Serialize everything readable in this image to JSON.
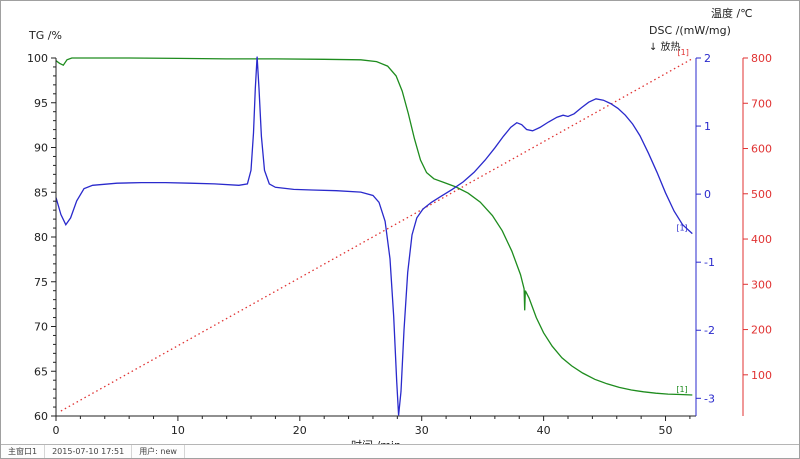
{
  "window": {
    "status_left": "主窗口1",
    "status_datetime": "2015-07-10 17:51",
    "status_user": "用户: new"
  },
  "chart_data": {
    "type": "line",
    "title": "",
    "grid": false,
    "x_axis": {
      "label": "时间 /min",
      "min": 0,
      "max": 52.5,
      "ticks": [
        0,
        10,
        20,
        30,
        40,
        50
      ],
      "minor_step": 2
    },
    "y_axes": [
      {
        "id": "tg",
        "label": "TG /%",
        "sublabel": "",
        "min": 60,
        "max": 100,
        "ticks": [
          100,
          95,
          90,
          85,
          80,
          75,
          70,
          65,
          60
        ],
        "side": "left",
        "color": "#222222"
      },
      {
        "id": "dsc",
        "label": "DSC /(mW/mg)",
        "sublabel": "↓ 放热",
        "min": -3.26,
        "max": 2,
        "ticks": [
          2,
          1,
          0,
          -1,
          -2,
          -3
        ],
        "side": "right",
        "color": "#2a2acc"
      },
      {
        "id": "temp",
        "label": "温度 /℃",
        "sublabel": "",
        "min": 9,
        "max": 800,
        "ticks": [
          800,
          700,
          600,
          500,
          400,
          300,
          200,
          100
        ],
        "side": "far-right",
        "color": "#e03232"
      }
    ],
    "series": [
      {
        "name": "TG",
        "axis": "tg",
        "color": "#1e8c1e",
        "style": "solid",
        "end_label": "[1]",
        "points": [
          [
            0,
            99.7
          ],
          [
            0.3,
            99.4
          ],
          [
            0.6,
            99.2
          ],
          [
            0.9,
            99.8
          ],
          [
            1.3,
            100.0
          ],
          [
            3,
            100.0
          ],
          [
            6,
            100.0
          ],
          [
            10,
            99.95
          ],
          [
            14,
            99.9
          ],
          [
            18,
            99.9
          ],
          [
            22,
            99.85
          ],
          [
            25,
            99.8
          ],
          [
            26.3,
            99.6
          ],
          [
            27.2,
            99.1
          ],
          [
            27.9,
            98.0
          ],
          [
            28.4,
            96.3
          ],
          [
            28.9,
            93.8
          ],
          [
            29.4,
            91.0
          ],
          [
            29.9,
            88.6
          ],
          [
            30.4,
            87.2
          ],
          [
            31.0,
            86.5
          ],
          [
            31.8,
            86.1
          ],
          [
            32.8,
            85.6
          ],
          [
            33.8,
            84.9
          ],
          [
            34.8,
            83.9
          ],
          [
            35.8,
            82.4
          ],
          [
            36.6,
            80.7
          ],
          [
            37.4,
            78.4
          ],
          [
            38.1,
            75.8
          ],
          [
            38.4,
            74.2
          ],
          [
            38.45,
            71.8
          ],
          [
            38.5,
            74.0
          ],
          [
            38.8,
            73.2
          ],
          [
            39.4,
            71.0
          ],
          [
            40.0,
            69.3
          ],
          [
            40.7,
            67.8
          ],
          [
            41.5,
            66.5
          ],
          [
            42.3,
            65.6
          ],
          [
            43.2,
            64.8
          ],
          [
            44.2,
            64.1
          ],
          [
            45.2,
            63.6
          ],
          [
            46.2,
            63.2
          ],
          [
            47.2,
            62.9
          ],
          [
            48.2,
            62.7
          ],
          [
            49.2,
            62.55
          ],
          [
            50.2,
            62.45
          ],
          [
            51.2,
            62.4
          ],
          [
            52.2,
            62.35
          ]
        ]
      },
      {
        "name": "DSC",
        "axis": "dsc",
        "color": "#2a2acc",
        "style": "solid",
        "end_label": "[1]",
        "points": [
          [
            0,
            -0.05
          ],
          [
            0.4,
            -0.3
          ],
          [
            0.8,
            -0.45
          ],
          [
            1.2,
            -0.35
          ],
          [
            1.7,
            -0.1
          ],
          [
            2.3,
            0.08
          ],
          [
            3,
            0.13
          ],
          [
            5,
            0.16
          ],
          [
            7,
            0.17
          ],
          [
            9,
            0.17
          ],
          [
            11,
            0.16
          ],
          [
            13,
            0.15
          ],
          [
            15,
            0.13
          ],
          [
            15.7,
            0.15
          ],
          [
            16.0,
            0.35
          ],
          [
            16.2,
            0.9
          ],
          [
            16.35,
            1.55
          ],
          [
            16.5,
            2.02
          ],
          [
            16.65,
            1.55
          ],
          [
            16.85,
            0.85
          ],
          [
            17.1,
            0.35
          ],
          [
            17.5,
            0.15
          ],
          [
            18,
            0.1
          ],
          [
            19.5,
            0.07
          ],
          [
            21,
            0.06
          ],
          [
            23,
            0.05
          ],
          [
            25,
            0.03
          ],
          [
            26,
            -0.02
          ],
          [
            26.5,
            -0.12
          ],
          [
            27.0,
            -0.4
          ],
          [
            27.4,
            -0.95
          ],
          [
            27.7,
            -1.8
          ],
          [
            27.95,
            -2.75
          ],
          [
            28.1,
            -3.25
          ],
          [
            28.3,
            -2.9
          ],
          [
            28.55,
            -2.0
          ],
          [
            28.85,
            -1.15
          ],
          [
            29.2,
            -0.6
          ],
          [
            29.6,
            -0.35
          ],
          [
            30.1,
            -0.22
          ],
          [
            30.8,
            -0.12
          ],
          [
            31.6,
            -0.03
          ],
          [
            32.5,
            0.07
          ],
          [
            33.4,
            0.18
          ],
          [
            34.3,
            0.32
          ],
          [
            35.2,
            0.5
          ],
          [
            36.0,
            0.68
          ],
          [
            36.7,
            0.85
          ],
          [
            37.3,
            0.98
          ],
          [
            37.8,
            1.05
          ],
          [
            38.2,
            1.02
          ],
          [
            38.6,
            0.95
          ],
          [
            39.1,
            0.93
          ],
          [
            39.7,
            0.98
          ],
          [
            40.4,
            1.06
          ],
          [
            41.1,
            1.13
          ],
          [
            41.6,
            1.16
          ],
          [
            42.0,
            1.14
          ],
          [
            42.5,
            1.18
          ],
          [
            43.1,
            1.27
          ],
          [
            43.7,
            1.35
          ],
          [
            44.3,
            1.4
          ],
          [
            44.9,
            1.38
          ],
          [
            45.5,
            1.33
          ],
          [
            46.1,
            1.26
          ],
          [
            46.7,
            1.16
          ],
          [
            47.3,
            1.03
          ],
          [
            47.9,
            0.86
          ],
          [
            48.6,
            0.6
          ],
          [
            49.3,
            0.32
          ],
          [
            50.0,
            0.02
          ],
          [
            50.7,
            -0.25
          ],
          [
            51.4,
            -0.45
          ],
          [
            52.2,
            -0.58
          ]
        ]
      },
      {
        "name": "温度",
        "axis": "temp",
        "color": "#e03232",
        "style": "dotted",
        "end_label": "[1]",
        "points": [
          [
            0.4,
            20
          ],
          [
            52.3,
            800
          ]
        ]
      }
    ]
  }
}
